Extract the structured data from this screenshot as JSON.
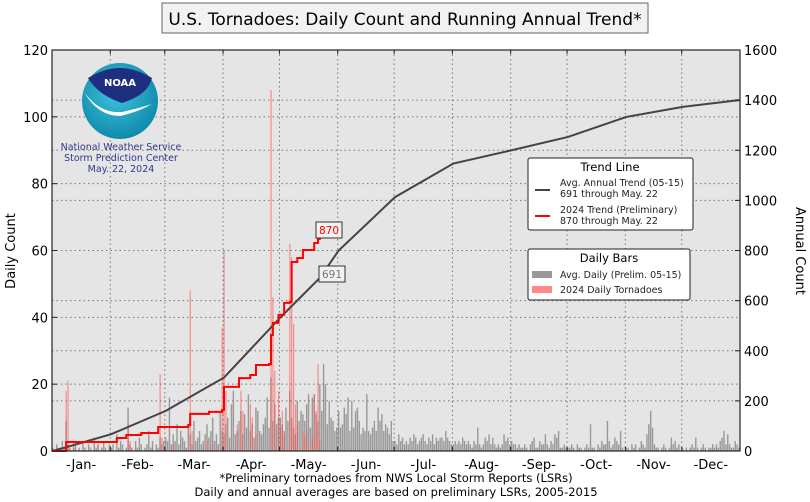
{
  "chart_data": {
    "type": "bar",
    "title": "U.S. Tornadoes: Daily Count and Running Annual Trend*",
    "ylabel": "Daily Count",
    "y2label": "Annual Count",
    "ylim": [
      0,
      120
    ],
    "y2lim": [
      0,
      1600
    ],
    "yticks": [
      "0",
      "20",
      "40",
      "60",
      "80",
      "100",
      "120"
    ],
    "y2ticks": [
      "0",
      "200",
      "400",
      "600",
      "800",
      "1000",
      "1200",
      "1400",
      "1600"
    ],
    "xticks": [
      "-Jan-",
      "-Feb-",
      "-Mar-",
      "-Apr-",
      "-May-",
      "-Jun-",
      "-Jul-",
      "-Aug-",
      "-Sep-",
      "-Oct-",
      "-Nov-",
      "-Dec-"
    ],
    "year": 2024,
    "grid": true,
    "colors": {
      "avg_trend": "#444444",
      "trend_2024": "#ff0000",
      "avg_daily": "#8c8c8c",
      "daily_2024": "#ff7070",
      "plot_bg": "#e5e5e5"
    },
    "avg_daily": {
      "Jan": [
        1,
        0,
        2,
        1,
        0,
        3,
        1,
        9,
        2,
        1,
        0,
        1,
        2,
        0,
        1,
        0,
        3,
        1,
        0,
        2,
        1,
        0,
        4,
        1,
        2,
        0,
        1,
        3,
        1,
        0,
        2
      ],
      "Feb": [
        1,
        2,
        0,
        5,
        1,
        3,
        2,
        0,
        1,
        13,
        2,
        1,
        0,
        3,
        1,
        4,
        2,
        0,
        1,
        2,
        6,
        1,
        3,
        0,
        2,
        1,
        4,
        2,
        3
      ],
      "Mar": [
        4,
        3,
        16,
        2,
        5,
        3,
        8,
        2,
        6,
        4,
        3,
        1,
        7,
        5,
        2,
        9,
        3,
        4,
        6,
        2,
        3,
        5,
        8,
        4,
        6,
        10,
        3,
        5,
        2,
        12,
        6
      ],
      "Apr": [
        5,
        8,
        10,
        4,
        14,
        18,
        5,
        6,
        9,
        12,
        5,
        11,
        7,
        17,
        6,
        8,
        4,
        13,
        12,
        6,
        5,
        8,
        10,
        16,
        7,
        22,
        9,
        14,
        8,
        10
      ],
      "May": [
        10,
        8,
        6,
        13,
        9,
        18,
        10,
        7,
        5,
        15,
        9,
        12,
        11,
        9,
        14,
        17,
        7,
        16,
        17,
        11,
        9,
        20,
        12,
        26,
        20,
        8,
        15,
        10,
        9,
        6,
        7
      ],
      "Jun": [
        12,
        7,
        8,
        13,
        11,
        16,
        6,
        15,
        7,
        12,
        13,
        9,
        5,
        7,
        6,
        17,
        6,
        5,
        7,
        9,
        6,
        13,
        9,
        11,
        6,
        8,
        7,
        5,
        9,
        3
      ],
      "Jul": [
        3,
        2,
        5,
        3,
        4,
        2,
        3,
        2,
        4,
        3,
        5,
        4,
        2,
        3,
        4,
        5,
        3,
        2,
        4,
        3,
        5,
        2,
        4,
        3,
        4,
        4,
        3,
        6,
        4,
        3,
        2
      ],
      "Aug": [
        2,
        3,
        2,
        3,
        2,
        4,
        3,
        2,
        3,
        2,
        1,
        3,
        2,
        7,
        2,
        1,
        2,
        4,
        3,
        5,
        2,
        4,
        2,
        1,
        2,
        1,
        2,
        5,
        3,
        4,
        2
      ],
      "Sep": [
        3,
        2,
        2,
        1,
        2,
        1,
        1,
        2,
        1,
        0,
        2,
        3,
        4,
        1,
        1,
        3,
        2,
        2,
        5,
        2,
        1,
        3,
        2,
        5,
        4,
        6,
        1,
        1,
        2,
        1
      ],
      "Oct": [
        1,
        1,
        2,
        1,
        0,
        2,
        1,
        1,
        0,
        1,
        2,
        1,
        8,
        1,
        1,
        0,
        2,
        1,
        3,
        2,
        2,
        9,
        3,
        1,
        2,
        4,
        3,
        2,
        6,
        1,
        0
      ],
      "Nov": [
        1,
        1,
        0,
        2,
        1,
        2,
        0,
        1,
        3,
        2,
        1,
        5,
        8,
        12,
        7,
        2,
        1,
        1,
        0,
        1,
        2,
        1,
        0,
        1,
        4,
        2,
        3,
        1,
        2,
        0
      ],
      "Dec": [
        1,
        0,
        1,
        0,
        1,
        2,
        1,
        4,
        1,
        0,
        1,
        2,
        1,
        0,
        1,
        1,
        2,
        1,
        2,
        1,
        3,
        4,
        6,
        2,
        5,
        2,
        1,
        1,
        3,
        2,
        1
      ]
    },
    "daily_2024": [
      [
        "2024-01-03",
        1
      ],
      [
        "2024-01-08",
        18
      ],
      [
        "2024-01-09",
        21
      ],
      [
        "2024-01-12",
        3
      ],
      [
        "2024-01-25",
        2
      ],
      [
        "2024-02-10",
        8
      ],
      [
        "2024-02-11",
        3
      ],
      [
        "2024-02-27",
        23
      ],
      [
        "2024-02-28",
        4
      ],
      [
        "2024-03-05",
        2
      ],
      [
        "2024-03-14",
        48
      ],
      [
        "2024-03-15",
        6
      ],
      [
        "2024-03-23",
        3
      ],
      [
        "2024-03-25",
        2
      ],
      [
        "2024-03-31",
        37
      ],
      [
        "2024-04-01",
        60
      ],
      [
        "2024-04-02",
        18
      ],
      [
        "2024-04-08",
        8
      ],
      [
        "2024-04-10",
        18
      ],
      [
        "2024-04-11",
        12
      ],
      [
        "2024-04-15",
        14
      ],
      [
        "2024-04-16",
        10
      ],
      [
        "2024-04-18",
        5
      ],
      [
        "2024-04-26",
        108
      ],
      [
        "2024-04-27",
        46
      ],
      [
        "2024-04-28",
        24
      ],
      [
        "2024-04-30",
        18
      ],
      [
        "2024-05-01",
        7
      ],
      [
        "2024-05-02",
        12
      ],
      [
        "2024-05-03",
        5
      ],
      [
        "2024-05-06",
        62
      ],
      [
        "2024-05-07",
        58
      ],
      [
        "2024-05-08",
        38
      ],
      [
        "2024-05-09",
        14
      ],
      [
        "2024-05-10",
        8
      ],
      [
        "2024-05-13",
        6
      ],
      [
        "2024-05-14",
        4
      ],
      [
        "2024-05-15",
        6
      ],
      [
        "2024-05-18",
        4
      ],
      [
        "2024-05-19",
        17
      ],
      [
        "2024-05-20",
        12
      ],
      [
        "2024-05-21",
        26
      ],
      [
        "2024-05-22",
        3
      ]
    ],
    "avg_trend": [
      [
        "2024-01-01",
        0
      ],
      [
        "2024-02-01",
        67
      ],
      [
        "2024-03-01",
        160
      ],
      [
        "2024-04-01",
        293
      ],
      [
        "2024-05-01",
        533
      ],
      [
        "2024-05-22",
        691
      ],
      [
        "2024-06-01",
        800
      ],
      [
        "2024-07-01",
        1013
      ],
      [
        "2024-08-01",
        1147
      ],
      [
        "2024-09-01",
        1200
      ],
      [
        "2024-10-01",
        1253
      ],
      [
        "2024-11-01",
        1333
      ],
      [
        "2024-12-01",
        1373
      ],
      [
        "2024-12-31",
        1400
      ]
    ],
    "trend_2024": [
      [
        "2024-01-01",
        0
      ],
      [
        "2024-01-08",
        36
      ],
      [
        "2024-02-04",
        52
      ],
      [
        "2024-02-09",
        64
      ],
      [
        "2024-02-17",
        72
      ],
      [
        "2024-02-26",
        96
      ],
      [
        "2024-03-13",
        104
      ],
      [
        "2024-03-14",
        148
      ],
      [
        "2024-03-24",
        156
      ],
      [
        "2024-03-31",
        164
      ],
      [
        "2024-04-01",
        256
      ],
      [
        "2024-04-09",
        291
      ],
      [
        "2024-04-15",
        303
      ],
      [
        "2024-04-18",
        343
      ],
      [
        "2024-04-25",
        347
      ],
      [
        "2024-04-26",
        463
      ],
      [
        "2024-04-27",
        511
      ],
      [
        "2024-04-30",
        543
      ],
      [
        "2024-05-03",
        591
      ],
      [
        "2024-05-06",
        595
      ],
      [
        "2024-05-07",
        754
      ],
      [
        "2024-05-10",
        770
      ],
      [
        "2024-05-13",
        802
      ],
      [
        "2024-05-19",
        830
      ],
      [
        "2024-05-21",
        846
      ],
      [
        "2024-05-22",
        870
      ]
    ],
    "annotations": {
      "trend_2024_label": "870",
      "avg_trend_label": "691"
    },
    "legend_trend": {
      "title": "Trend Line",
      "avg_line1": "Avg. Annual Trend (05-15)",
      "avg_line2": "691 through May. 22",
      "cur_line1": "2024 Trend (Preliminary)",
      "cur_line2": "870 through May. 22"
    },
    "legend_bars": {
      "title": "Daily Bars",
      "avg": "Avg. Daily (Prelim. 05-15)",
      "cur": "2024 Daily Tornadoes"
    },
    "footnotes": [
      "*Preliminary tornadoes from NWS Local Storm Reports (LSRs)",
      "Daily and annual averages are based on preliminary LSRs, 2005-2015"
    ]
  },
  "logo": {
    "wordmark": "NOAA",
    "line1": "National Weather Service",
    "line2": "Storm Prediction Center",
    "date": "May. 22, 2024"
  }
}
